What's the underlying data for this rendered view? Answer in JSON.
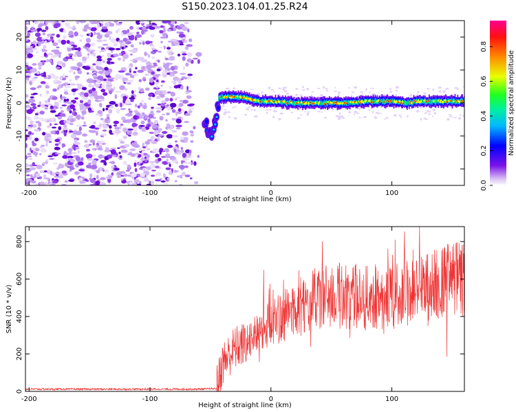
{
  "title": "S150.2023.104.01.25.R24",
  "chart_data": [
    {
      "type": "heatmap",
      "xlabel": "Height of straight line (km)",
      "ylabel": "Frequency (Hz)",
      "xlim": [
        -203,
        160
      ],
      "ylim": [
        -25,
        25
      ],
      "xticks": [
        -200,
        -100,
        0,
        100
      ],
      "yticks": [
        -20,
        -10,
        0,
        10,
        20
      ],
      "colorbar": {
        "label": "Normalized spectral amplitude",
        "range": [
          0,
          0.95
        ],
        "ticks": [
          0.0,
          0.2,
          0.4,
          0.6,
          0.8
        ]
      },
      "colormap": [
        "#ffffff",
        "#e6d2f8",
        "#7a14e8",
        "#0000ff",
        "#00d0ff",
        "#00ff60",
        "#ffff00",
        "#ff7a00",
        "#ff0040",
        "#ff00a0"
      ],
      "features": {
        "noise_region_x": [
          -203,
          -58
        ],
        "descending_trace": [
          [
            -55,
            -6
          ],
          [
            -52,
            -8
          ],
          [
            -49,
            -11
          ],
          [
            -47,
            -8
          ],
          [
            -45,
            -3
          ],
          [
            -43,
            0
          ]
        ],
        "signal_band": [
          [
            -43,
            1.5
          ],
          [
            -35,
            2
          ],
          [
            -20,
            1.5
          ],
          [
            -10,
            0.5
          ],
          [
            0,
            0.5
          ],
          [
            20,
            0
          ],
          [
            40,
            0
          ],
          [
            60,
            0
          ],
          [
            80,
            0.5
          ],
          [
            100,
            0.5
          ],
          [
            115,
            0
          ],
          [
            120,
            0.5
          ],
          [
            140,
            0.5
          ],
          [
            160,
            0.5
          ]
        ]
      }
    },
    {
      "type": "line",
      "xlabel": "Height of straight line (km)",
      "ylabel": "SNR (10 * v/v)",
      "xlim": [
        -203,
        160
      ],
      "ylim": [
        0,
        880
      ],
      "xticks": [
        -200,
        -100,
        0,
        100
      ],
      "yticks": [
        0,
        200,
        400,
        600,
        800
      ],
      "color": "#ee3333",
      "trend": [
        [
          -203,
          12
        ],
        [
          -60,
          12
        ],
        [
          -45,
          15
        ],
        [
          -40,
          150
        ],
        [
          -30,
          230
        ],
        [
          -20,
          260
        ],
        [
          -10,
          320
        ],
        [
          0,
          370
        ],
        [
          10,
          400
        ],
        [
          20,
          440
        ],
        [
          30,
          470
        ],
        [
          40,
          500
        ],
        [
          50,
          510
        ],
        [
          60,
          510
        ],
        [
          70,
          505
        ],
        [
          80,
          500
        ],
        [
          90,
          505
        ],
        [
          100,
          510
        ],
        [
          110,
          520
        ],
        [
          120,
          540
        ],
        [
          130,
          560
        ],
        [
          140,
          580
        ],
        [
          150,
          600
        ],
        [
          160,
          600
        ]
      ]
    }
  ]
}
